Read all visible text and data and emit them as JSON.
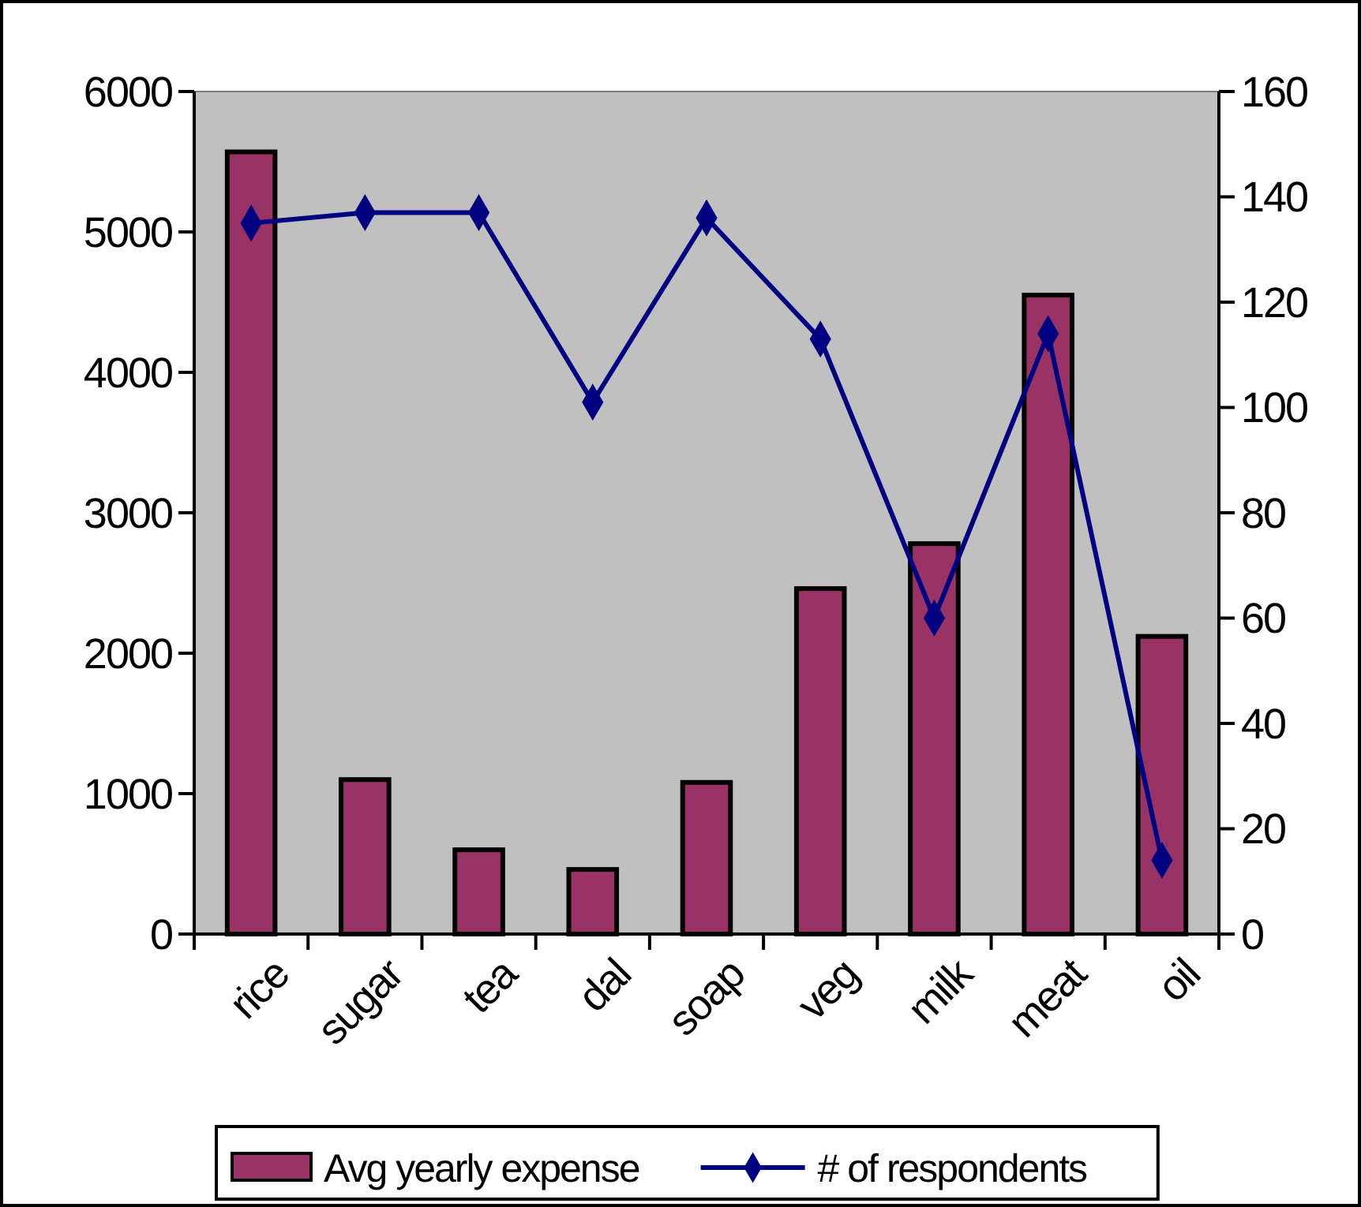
{
  "chart_data": {
    "type": "bar",
    "categories": [
      "rice",
      "sugar",
      "tea",
      "dal",
      "soap",
      "veg",
      "milk",
      "meat",
      "oil"
    ],
    "series": [
      {
        "name": "Avg yearly expense",
        "color": "#993366",
        "values": [
          5570,
          1100,
          600,
          460,
          1080,
          2460,
          2780,
          4550,
          2120
        ]
      },
      {
        "name": "# of respondents",
        "type": "line",
        "axis": "y2",
        "color": "#000080",
        "marker": "diamond",
        "values": [
          135,
          137,
          137,
          101,
          136,
          113,
          60,
          114,
          14
        ]
      }
    ],
    "ylim": [
      0,
      6000
    ],
    "yticks": [
      0,
      1000,
      2000,
      3000,
      4000,
      5000,
      6000
    ],
    "y2lim": [
      0,
      160
    ],
    "y2ticks": [
      0,
      20,
      40,
      60,
      80,
      100,
      120,
      140,
      160
    ],
    "grid": false,
    "legend": "bottom"
  }
}
